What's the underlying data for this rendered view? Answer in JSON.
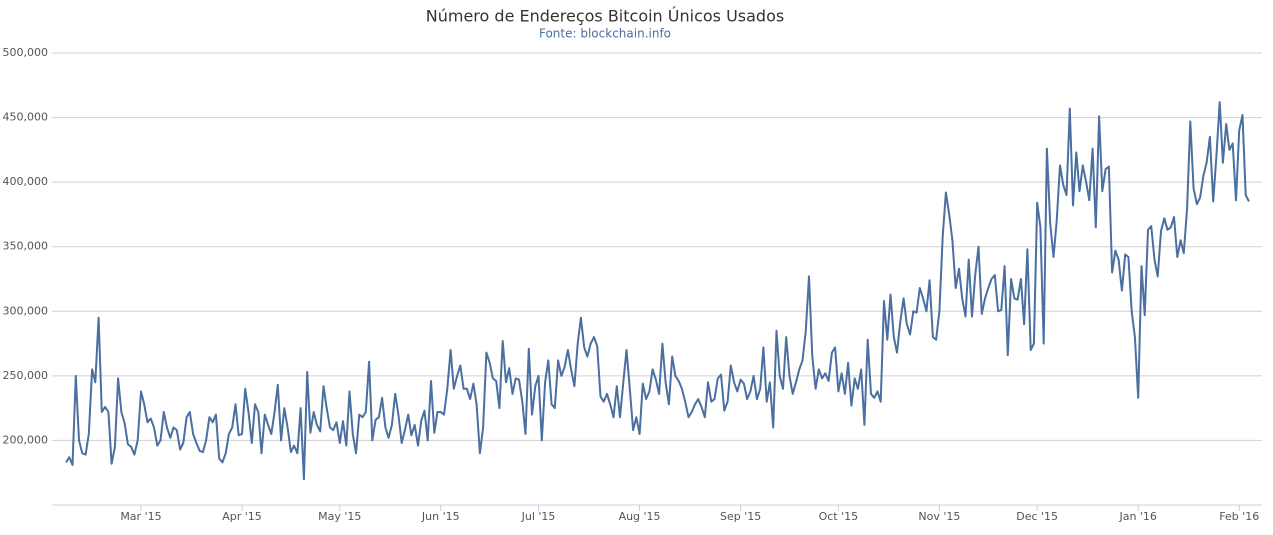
{
  "chart_data": {
    "type": "line",
    "title": "Número de Endereços Bitcoin Únicos Usados",
    "subtitle": "Fonte: blockchain.info",
    "categories": [
      null,
      null,
      null,
      null,
      null,
      null,
      null,
      null,
      null,
      null,
      null,
      null,
      null,
      null,
      null,
      null,
      null,
      null,
      null,
      null,
      null,
      null,
      null,
      "Mar '15",
      null,
      null,
      null,
      null,
      null,
      null,
      null,
      null,
      null,
      null,
      null,
      null,
      null,
      null,
      null,
      null,
      null,
      null,
      null,
      null,
      null,
      null,
      null,
      null,
      null,
      null,
      null,
      null,
      null,
      null,
      "Apr '15",
      null,
      null,
      null,
      null,
      null,
      null,
      null,
      null,
      null,
      null,
      null,
      null,
      null,
      null,
      null,
      null,
      null,
      null,
      null,
      null,
      null,
      null,
      null,
      null,
      null,
      null,
      null,
      null,
      null,
      "May '15",
      null,
      null,
      null,
      null,
      null,
      null,
      null,
      null,
      null,
      null,
      null,
      null,
      null,
      null,
      null,
      null,
      null,
      null,
      null,
      null,
      null,
      null,
      null,
      null,
      null,
      null,
      null,
      null,
      null,
      null,
      "Jun '15",
      null,
      null,
      null,
      null,
      null,
      null,
      null,
      null,
      null,
      null,
      null,
      null,
      null,
      null,
      null,
      null,
      null,
      null,
      null,
      null,
      null,
      null,
      null,
      null,
      null,
      null,
      null,
      null,
      null,
      "Jul '15",
      null,
      null,
      null,
      null,
      null,
      null,
      null,
      null,
      null,
      null,
      null,
      null,
      null,
      null,
      null,
      null,
      null,
      null,
      null,
      null,
      null,
      null,
      null,
      null,
      null,
      null,
      null,
      null,
      null,
      null,
      "Aug '15",
      null,
      null,
      null,
      null,
      null,
      null,
      null,
      null,
      null,
      null,
      null,
      null,
      null,
      null,
      null,
      null,
      null,
      null,
      null,
      null,
      null,
      null,
      null,
      null,
      null,
      null,
      null,
      null,
      null,
      null,
      "Sep '15",
      null,
      null,
      null,
      null,
      null,
      null,
      null,
      null,
      null,
      null,
      null,
      null,
      null,
      null,
      null,
      null,
      null,
      null,
      null,
      null,
      null,
      null,
      null,
      null,
      null,
      null,
      null,
      null,
      null,
      "Oct '15",
      null,
      null,
      null,
      null,
      null,
      null,
      null,
      null,
      null,
      null,
      null,
      null,
      null,
      null,
      null,
      null,
      null,
      null,
      null,
      null,
      null,
      null,
      null,
      null,
      null,
      null,
      null,
      null,
      null,
      null,
      "Nov '15",
      null,
      null,
      null,
      null,
      null,
      null,
      null,
      null,
      null,
      null,
      null,
      null,
      null,
      null,
      null,
      null,
      null,
      null,
      null,
      null,
      null,
      null,
      null,
      null,
      null,
      null,
      null,
      null,
      null,
      "Dec '15",
      null,
      null,
      null,
      null,
      null,
      null,
      null,
      null,
      null,
      null,
      null,
      null,
      null,
      null,
      null,
      null,
      null,
      null,
      null,
      null,
      null,
      null,
      null,
      null,
      null,
      null,
      null,
      null,
      null,
      null,
      "Jan '16",
      null,
      null,
      null,
      null,
      null,
      null,
      null,
      null,
      null,
      null,
      null,
      null,
      null,
      null,
      null,
      null,
      null,
      null,
      null,
      null,
      null,
      null,
      null,
      null,
      null,
      null,
      null,
      null,
      null,
      null,
      "Feb '16",
      null,
      null,
      null
    ],
    "series": [
      {
        "name": "Endereços",
        "color": "#4a6fa0",
        "values": [
          183000,
          187000,
          181000,
          250000,
          200000,
          190000,
          189000,
          205000,
          255000,
          245000,
          295000,
          222000,
          226000,
          222000,
          182000,
          195000,
          248000,
          222000,
          213000,
          197000,
          195000,
          189000,
          200000,
          238000,
          228000,
          214000,
          217000,
          210000,
          196000,
          200000,
          222000,
          210000,
          202000,
          210000,
          208000,
          193000,
          198000,
          218000,
          222000,
          205000,
          198000,
          192000,
          191000,
          200000,
          218000,
          214000,
          220000,
          186000,
          183000,
          190000,
          205000,
          210000,
          228000,
          204000,
          205000,
          240000,
          222000,
          198000,
          228000,
          222000,
          190000,
          220000,
          212000,
          205000,
          222000,
          243000,
          200000,
          225000,
          210000,
          191000,
          196000,
          190000,
          225000,
          170000,
          253000,
          206000,
          222000,
          212000,
          207000,
          242000,
          225000,
          210000,
          208000,
          214000,
          198000,
          215000,
          196000,
          238000,
          205000,
          190000,
          220000,
          218000,
          222000,
          261000,
          200000,
          216000,
          218000,
          233000,
          210000,
          202000,
          212000,
          236000,
          220000,
          198000,
          208000,
          220000,
          204000,
          212000,
          196000,
          215000,
          223000,
          200000,
          246000,
          206000,
          222000,
          222000,
          220000,
          240000,
          270000,
          240000,
          250000,
          258000,
          240000,
          240000,
          232000,
          244000,
          228000,
          190000,
          210000,
          268000,
          260000,
          248000,
          246000,
          225000,
          277000,
          245000,
          256000,
          236000,
          248000,
          247000,
          230000,
          205000,
          271000,
          220000,
          242000,
          250000,
          200000,
          245000,
          262000,
          228000,
          225000,
          262000,
          250000,
          257000,
          270000,
          255000,
          242000,
          275000,
          295000,
          272000,
          265000,
          275000,
          280000,
          273000,
          234000,
          230000,
          236000,
          228000,
          218000,
          242000,
          218000,
          245000,
          270000,
          240000,
          208000,
          218000,
          205000,
          244000,
          232000,
          238000,
          255000,
          247000,
          236000,
          275000,
          245000,
          228000,
          265000,
          250000,
          246000,
          240000,
          230000,
          218000,
          222000,
          228000,
          232000,
          226000,
          218000,
          245000,
          230000,
          232000,
          248000,
          251000,
          223000,
          230000,
          258000,
          245000,
          238000,
          247000,
          244000,
          232000,
          238000,
          250000,
          232000,
          240000,
          272000,
          230000,
          245000,
          210000,
          285000,
          250000,
          240000,
          280000,
          250000,
          236000,
          245000,
          255000,
          262000,
          285000,
          327000,
          265000,
          240000,
          255000,
          248000,
          252000,
          246000,
          268000,
          272000,
          238000,
          252000,
          236000,
          260000,
          227000,
          248000,
          240000,
          255000,
          212000,
          278000,
          236000,
          233000,
          238000,
          230000,
          308000,
          278000,
          313000,
          280000,
          268000,
          292000,
          310000,
          290000,
          282000,
          300000,
          299000,
          318000,
          310000,
          300000,
          324000,
          280000,
          278000,
          300000,
          358000,
          392000,
          375000,
          355000,
          318000,
          333000,
          310000,
          296000,
          340000,
          296000,
          328000,
          350000,
          298000,
          310000,
          318000,
          325000,
          328000,
          300000,
          301000,
          335000,
          266000,
          325000,
          310000,
          309000,
          325000,
          290000,
          348000,
          270000,
          275000,
          384000,
          365000,
          275000,
          426000,
          368000,
          342000,
          370000,
          413000,
          398000,
          390000,
          457000,
          382000,
          423000,
          393000,
          413000,
          400000,
          386000,
          426000,
          365000,
          451000,
          393000,
          410000,
          412000,
          330000,
          347000,
          340000,
          316000,
          344000,
          342000,
          300000,
          280000,
          233000,
          335000,
          297000,
          363000,
          366000,
          340000,
          327000,
          362000,
          372000,
          363000,
          365000,
          373000,
          342000,
          355000,
          345000,
          380000,
          447000,
          395000,
          383000,
          388000,
          405000,
          415000,
          435000,
          385000,
          420000,
          462000,
          415000,
          445000,
          425000,
          430000,
          386000,
          440000,
          452000,
          390000,
          385000
        ]
      }
    ],
    "ylim": [
      150000,
      500000
    ],
    "yticks": [
      {
        "value": 200000,
        "label": "200,000"
      },
      {
        "value": 250000,
        "label": "250,000"
      },
      {
        "value": 300000,
        "label": "300,000"
      },
      {
        "value": 350000,
        "label": "350,000"
      },
      {
        "value": 400000,
        "label": "400,000"
      },
      {
        "value": 450000,
        "label": "450,000"
      },
      {
        "value": 500000,
        "label": "500,000"
      }
    ],
    "grid": true
  }
}
